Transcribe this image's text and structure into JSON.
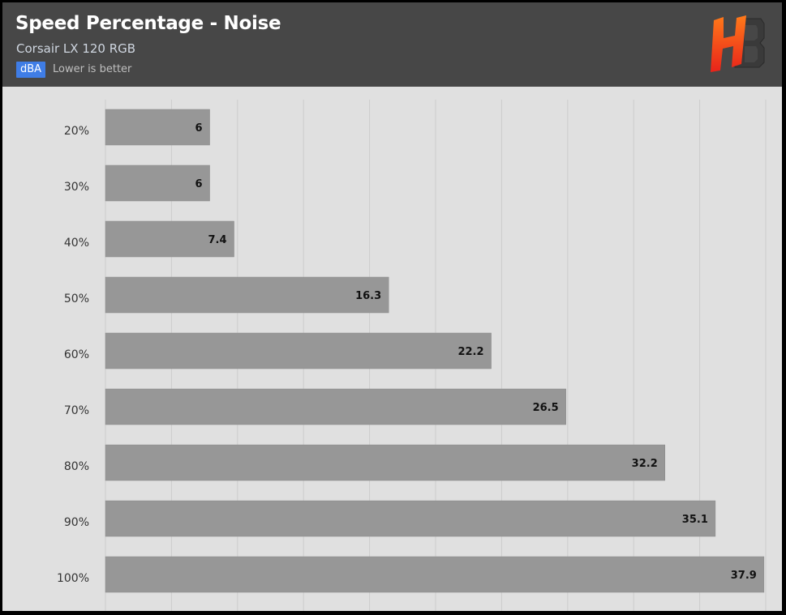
{
  "header": {
    "title": "Speed Percentage - Noise",
    "subtitle": "Corsair LX 120 RGB",
    "unit_badge": "dBA",
    "note": "Lower is better",
    "logo_icon": "hb-logo-icon",
    "background_color": "#474747",
    "badge_color": "#3f7de6"
  },
  "chart_data": {
    "type": "bar",
    "orientation": "horizontal",
    "title": "Speed Percentage - Noise",
    "subtitle": "Corsair LX 120 RGB",
    "unit": "dBA",
    "note": "Lower is better",
    "categories": [
      "20%",
      "30%",
      "40%",
      "50%",
      "60%",
      "70%",
      "80%",
      "90%",
      "100%"
    ],
    "values": [
      6,
      6,
      7.4,
      16.3,
      22.2,
      26.5,
      32.2,
      35.1,
      37.9
    ],
    "xlim": [
      0,
      38
    ],
    "grid": true,
    "bar_color": "#979797",
    "grid_color": "#cccccc"
  }
}
